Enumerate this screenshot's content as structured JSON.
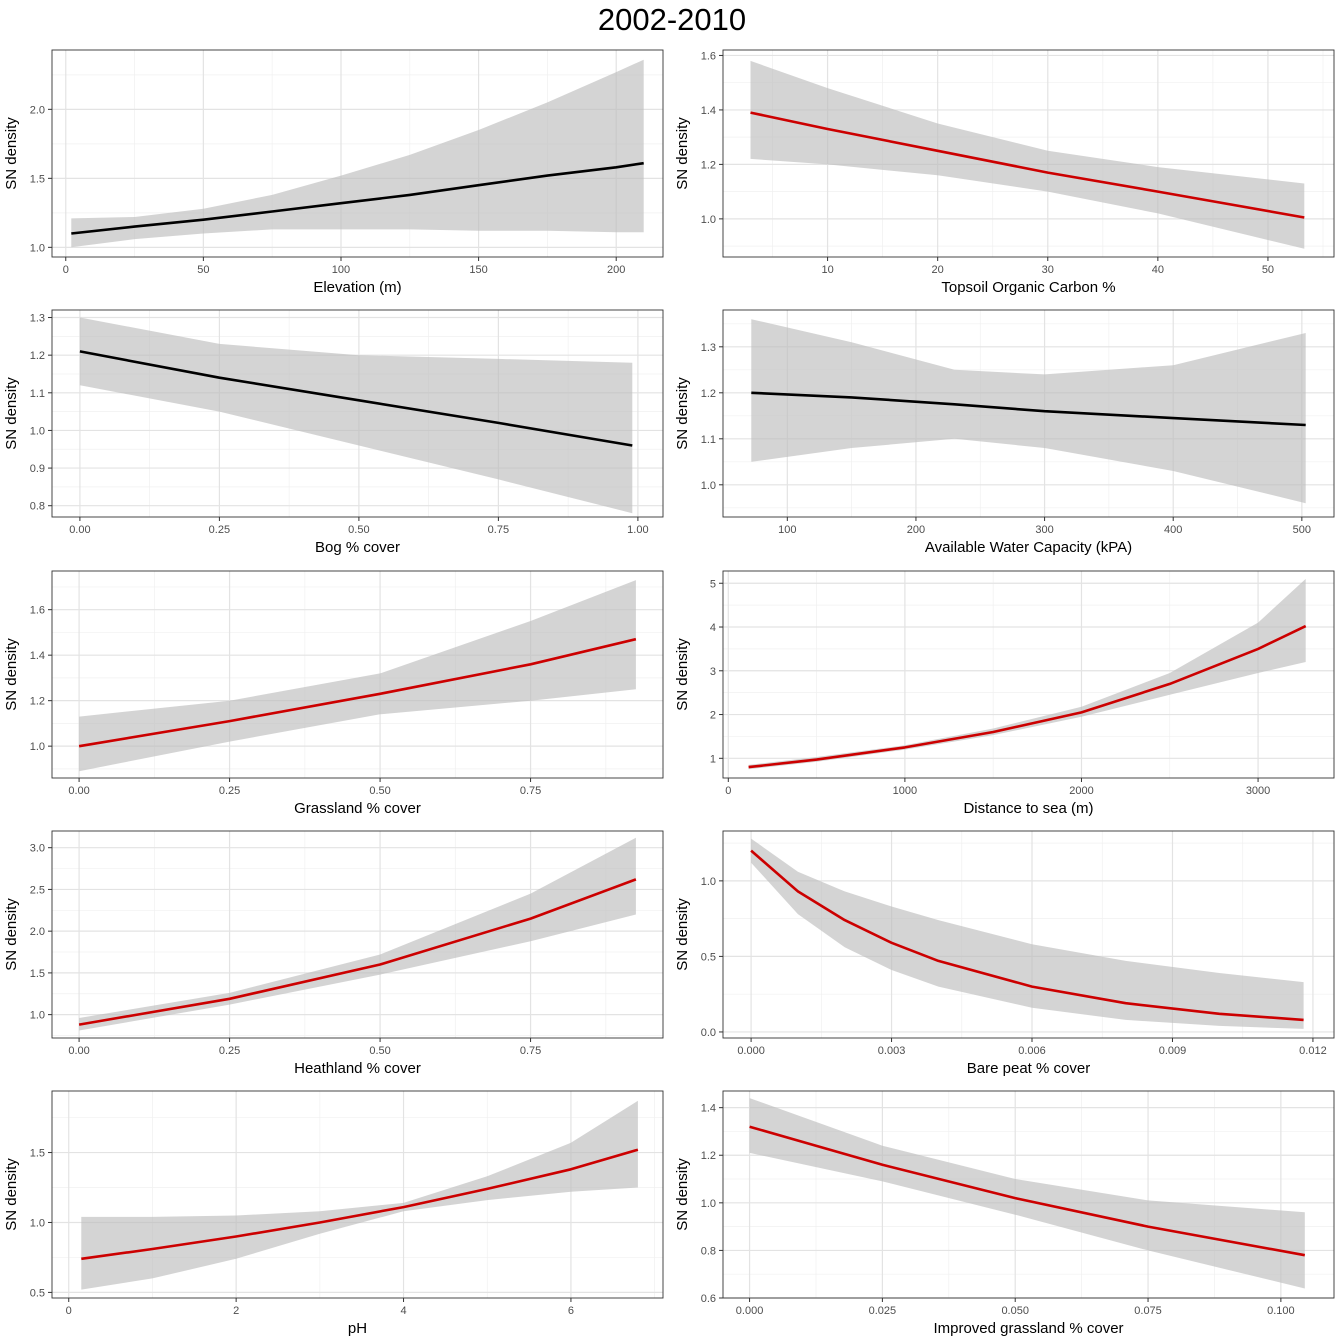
{
  "figure": {
    "title": "2002-2010"
  },
  "chart_data": [
    {
      "type": "line",
      "ribbon": true,
      "xlabel": "Elevation (m)",
      "ylabel": "SN density",
      "xlim": [
        -5,
        217
      ],
      "ylim": [
        0.93,
        2.43
      ],
      "xticks": [
        0,
        50,
        100,
        150,
        200
      ],
      "xticklabels": [
        "0",
        "50",
        "100",
        "150",
        "200"
      ],
      "yticks": [
        1.0,
        1.5,
        2.0
      ],
      "yticklabels": [
        "1.0",
        "1.5",
        "2.0"
      ],
      "color": "#000000",
      "x": [
        2,
        25,
        50,
        75,
        100,
        125,
        150,
        175,
        200,
        210
      ],
      "y": [
        1.1,
        1.15,
        1.2,
        1.26,
        1.32,
        1.38,
        1.45,
        1.52,
        1.58,
        1.61
      ],
      "lower": [
        1.0,
        1.06,
        1.1,
        1.13,
        1.13,
        1.13,
        1.12,
        1.12,
        1.11,
        1.11
      ],
      "upper": [
        1.21,
        1.22,
        1.28,
        1.38,
        1.52,
        1.67,
        1.85,
        2.05,
        2.27,
        2.36
      ]
    },
    {
      "type": "line",
      "ribbon": true,
      "xlabel": "Topsoil Organic Carbon %",
      "ylabel": "SN density",
      "xlim": [
        0.5,
        56
      ],
      "ylim": [
        0.86,
        1.62
      ],
      "xticks": [
        10,
        20,
        30,
        40,
        50
      ],
      "xticklabels": [
        "10",
        "20",
        "30",
        "40",
        "50"
      ],
      "yticks": [
        1.0,
        1.2,
        1.4,
        1.6
      ],
      "yticklabels": [
        "1.0",
        "1.2",
        "1.4",
        "1.6"
      ],
      "color": "#cc0000",
      "x": [
        3,
        10,
        20,
        30,
        40,
        53.3
      ],
      "y": [
        1.39,
        1.33,
        1.25,
        1.17,
        1.1,
        1.005
      ],
      "lower": [
        1.22,
        1.2,
        1.16,
        1.1,
        1.02,
        0.89
      ],
      "upper": [
        1.58,
        1.48,
        1.35,
        1.25,
        1.19,
        1.13
      ]
    },
    {
      "type": "line",
      "ribbon": true,
      "xlabel": "Bog % cover",
      "ylabel": "SN density",
      "xlim": [
        -0.05,
        1.045
      ],
      "ylim": [
        0.77,
        1.32
      ],
      "xticks": [
        0,
        0.25,
        0.5,
        0.75,
        1.0
      ],
      "xticklabels": [
        "0.00",
        "0.25",
        "0.50",
        "0.75",
        "1.00"
      ],
      "yticks": [
        0.8,
        0.9,
        1.0,
        1.1,
        1.2,
        1.3
      ],
      "yticklabels": [
        "0.8",
        "0.9",
        "1.0",
        "1.1",
        "1.2",
        "1.3"
      ],
      "color": "#000000",
      "x": [
        0,
        0.25,
        0.5,
        0.75,
        0.99
      ],
      "y": [
        1.21,
        1.14,
        1.08,
        1.02,
        0.96
      ],
      "lower": [
        1.12,
        1.05,
        0.96,
        0.87,
        0.78
      ],
      "upper": [
        1.3,
        1.23,
        1.2,
        1.19,
        1.18
      ]
    },
    {
      "type": "line",
      "ribbon": true,
      "xlabel": "Available Water Capacity (kPA)",
      "ylabel": "SN density",
      "xlim": [
        50,
        525
      ],
      "ylim": [
        0.93,
        1.38
      ],
      "xticks": [
        100,
        200,
        300,
        400,
        500
      ],
      "xticklabels": [
        "100",
        "200",
        "300",
        "400",
        "500"
      ],
      "yticks": [
        1.0,
        1.1,
        1.2,
        1.3
      ],
      "yticklabels": [
        "1.0",
        "1.1",
        "1.2",
        "1.3"
      ],
      "color": "#000000",
      "x": [
        72,
        150,
        230,
        300,
        400,
        503
      ],
      "y": [
        1.2,
        1.19,
        1.175,
        1.16,
        1.145,
        1.13
      ],
      "lower": [
        1.05,
        1.08,
        1.1,
        1.08,
        1.03,
        0.96
      ],
      "upper": [
        1.36,
        1.31,
        1.25,
        1.24,
        1.26,
        1.33
      ]
    },
    {
      "type": "line",
      "ribbon": true,
      "xlabel": "Grassland % cover",
      "ylabel": "SN density",
      "xlim": [
        -0.045,
        0.97
      ],
      "ylim": [
        0.86,
        1.77
      ],
      "xticks": [
        0,
        0.25,
        0.5,
        0.75
      ],
      "xticklabels": [
        "0.00",
        "0.25",
        "0.50",
        "0.75"
      ],
      "yticks": [
        1.0,
        1.2,
        1.4,
        1.6
      ],
      "yticklabels": [
        "1.0",
        "1.2",
        "1.4",
        "1.6"
      ],
      "color": "#cc0000",
      "x": [
        0,
        0.25,
        0.5,
        0.75,
        0.925
      ],
      "y": [
        1.0,
        1.11,
        1.23,
        1.36,
        1.47
      ],
      "lower": [
        0.89,
        1.02,
        1.14,
        1.2,
        1.25
      ],
      "upper": [
        1.13,
        1.2,
        1.32,
        1.55,
        1.73
      ]
    },
    {
      "type": "line",
      "ribbon": true,
      "xlabel": "Distance to sea (m)",
      "ylabel": "SN density",
      "xlim": [
        -30,
        3430
      ],
      "ylim": [
        0.55,
        5.28
      ],
      "xticks": [
        0,
        1000,
        2000,
        3000
      ],
      "xticklabels": [
        "0",
        "1000",
        "2000",
        "3000"
      ],
      "yticks": [
        1,
        2,
        3,
        4,
        5
      ],
      "yticklabels": [
        "1",
        "2",
        "3",
        "4",
        "5"
      ],
      "color": "#cc0000",
      "x": [
        115,
        500,
        1000,
        1500,
        2000,
        2500,
        3000,
        3270
      ],
      "y": [
        0.8,
        0.97,
        1.25,
        1.6,
        2.05,
        2.7,
        3.5,
        4.02
      ],
      "lower": [
        0.75,
        0.92,
        1.2,
        1.53,
        1.95,
        2.45,
        2.95,
        3.2
      ],
      "upper": [
        0.85,
        1.03,
        1.3,
        1.68,
        2.18,
        2.95,
        4.1,
        5.1
      ]
    },
    {
      "type": "line",
      "ribbon": true,
      "xlabel": "Heathland % cover",
      "ylabel": "SN density",
      "xlim": [
        -0.045,
        0.97
      ],
      "ylim": [
        0.72,
        3.2
      ],
      "xticks": [
        0,
        0.25,
        0.5,
        0.75
      ],
      "xticklabels": [
        "0.00",
        "0.25",
        "0.50",
        "0.75"
      ],
      "yticks": [
        1.0,
        1.5,
        2.0,
        2.5,
        3.0
      ],
      "yticklabels": [
        "1.0",
        "1.5",
        "2.0",
        "2.5",
        "3.0"
      ],
      "color": "#cc0000",
      "x": [
        0,
        0.25,
        0.5,
        0.75,
        0.925
      ],
      "y": [
        0.88,
        1.19,
        1.6,
        2.15,
        2.62
      ],
      "lower": [
        0.81,
        1.12,
        1.48,
        1.88,
        2.2
      ],
      "upper": [
        0.96,
        1.26,
        1.72,
        2.45,
        3.12
      ]
    },
    {
      "type": "line",
      "ribbon": true,
      "xlabel": "Bare peat % cover",
      "ylabel": "SN density",
      "xlim": [
        -0.0006,
        0.01245
      ],
      "ylim": [
        -0.04,
        1.33
      ],
      "xticks": [
        0,
        0.003,
        0.006,
        0.009,
        0.012
      ],
      "xticklabels": [
        "0.000",
        "0.003",
        "0.006",
        "0.009",
        "0.012"
      ],
      "yticks": [
        0.0,
        0.5,
        1.0
      ],
      "yticklabels": [
        "0.0",
        "0.5",
        "1.0"
      ],
      "color": "#cc0000",
      "x": [
        0,
        0.001,
        0.002,
        0.003,
        0.004,
        0.006,
        0.008,
        0.01,
        0.0118
      ],
      "y": [
        1.2,
        0.93,
        0.74,
        0.59,
        0.47,
        0.3,
        0.19,
        0.12,
        0.08
      ],
      "lower": [
        1.12,
        0.78,
        0.56,
        0.41,
        0.3,
        0.16,
        0.08,
        0.04,
        0.02
      ],
      "upper": [
        1.28,
        1.06,
        0.93,
        0.83,
        0.74,
        0.58,
        0.47,
        0.39,
        0.33
      ]
    },
    {
      "type": "line",
      "ribbon": true,
      "xlabel": "pH",
      "ylabel": "SN density",
      "xlim": [
        -0.2,
        7.1
      ],
      "ylim": [
        0.46,
        1.94
      ],
      "xticks": [
        0,
        2,
        4,
        6
      ],
      "xticklabels": [
        "0",
        "2",
        "4",
        "6"
      ],
      "yticks": [
        0.5,
        1.0,
        1.5
      ],
      "yticklabels": [
        "0.5",
        "1.0",
        "1.5"
      ],
      "color": "#cc0000",
      "x": [
        0.15,
        1,
        2,
        3,
        4,
        5,
        6,
        6.8
      ],
      "y": [
        0.74,
        0.81,
        0.9,
        1.0,
        1.11,
        1.24,
        1.38,
        1.52
      ],
      "lower": [
        0.52,
        0.6,
        0.74,
        0.92,
        1.08,
        1.16,
        1.22,
        1.25
      ],
      "upper": [
        1.04,
        1.04,
        1.05,
        1.08,
        1.14,
        1.33,
        1.57,
        1.87
      ]
    },
    {
      "type": "line",
      "ribbon": true,
      "xlabel": "Improved grassland % cover",
      "ylabel": "SN density",
      "xlim": [
        -0.005,
        0.11
      ],
      "ylim": [
        0.6,
        1.47
      ],
      "xticks": [
        0,
        0.025,
        0.05,
        0.075,
        0.1
      ],
      "xticklabels": [
        "0.000",
        "0.025",
        "0.050",
        "0.075",
        "0.100"
      ],
      "yticks": [
        0.6,
        0.8,
        1.0,
        1.2,
        1.4
      ],
      "yticklabels": [
        "0.6",
        "0.8",
        "1.0",
        "1.2",
        "1.4"
      ],
      "color": "#cc0000",
      "x": [
        0,
        0.025,
        0.05,
        0.075,
        0.1045
      ],
      "y": [
        1.32,
        1.16,
        1.02,
        0.9,
        0.78
      ],
      "lower": [
        1.21,
        1.09,
        0.95,
        0.8,
        0.64
      ],
      "upper": [
        1.44,
        1.24,
        1.1,
        1.01,
        0.96
      ]
    }
  ]
}
